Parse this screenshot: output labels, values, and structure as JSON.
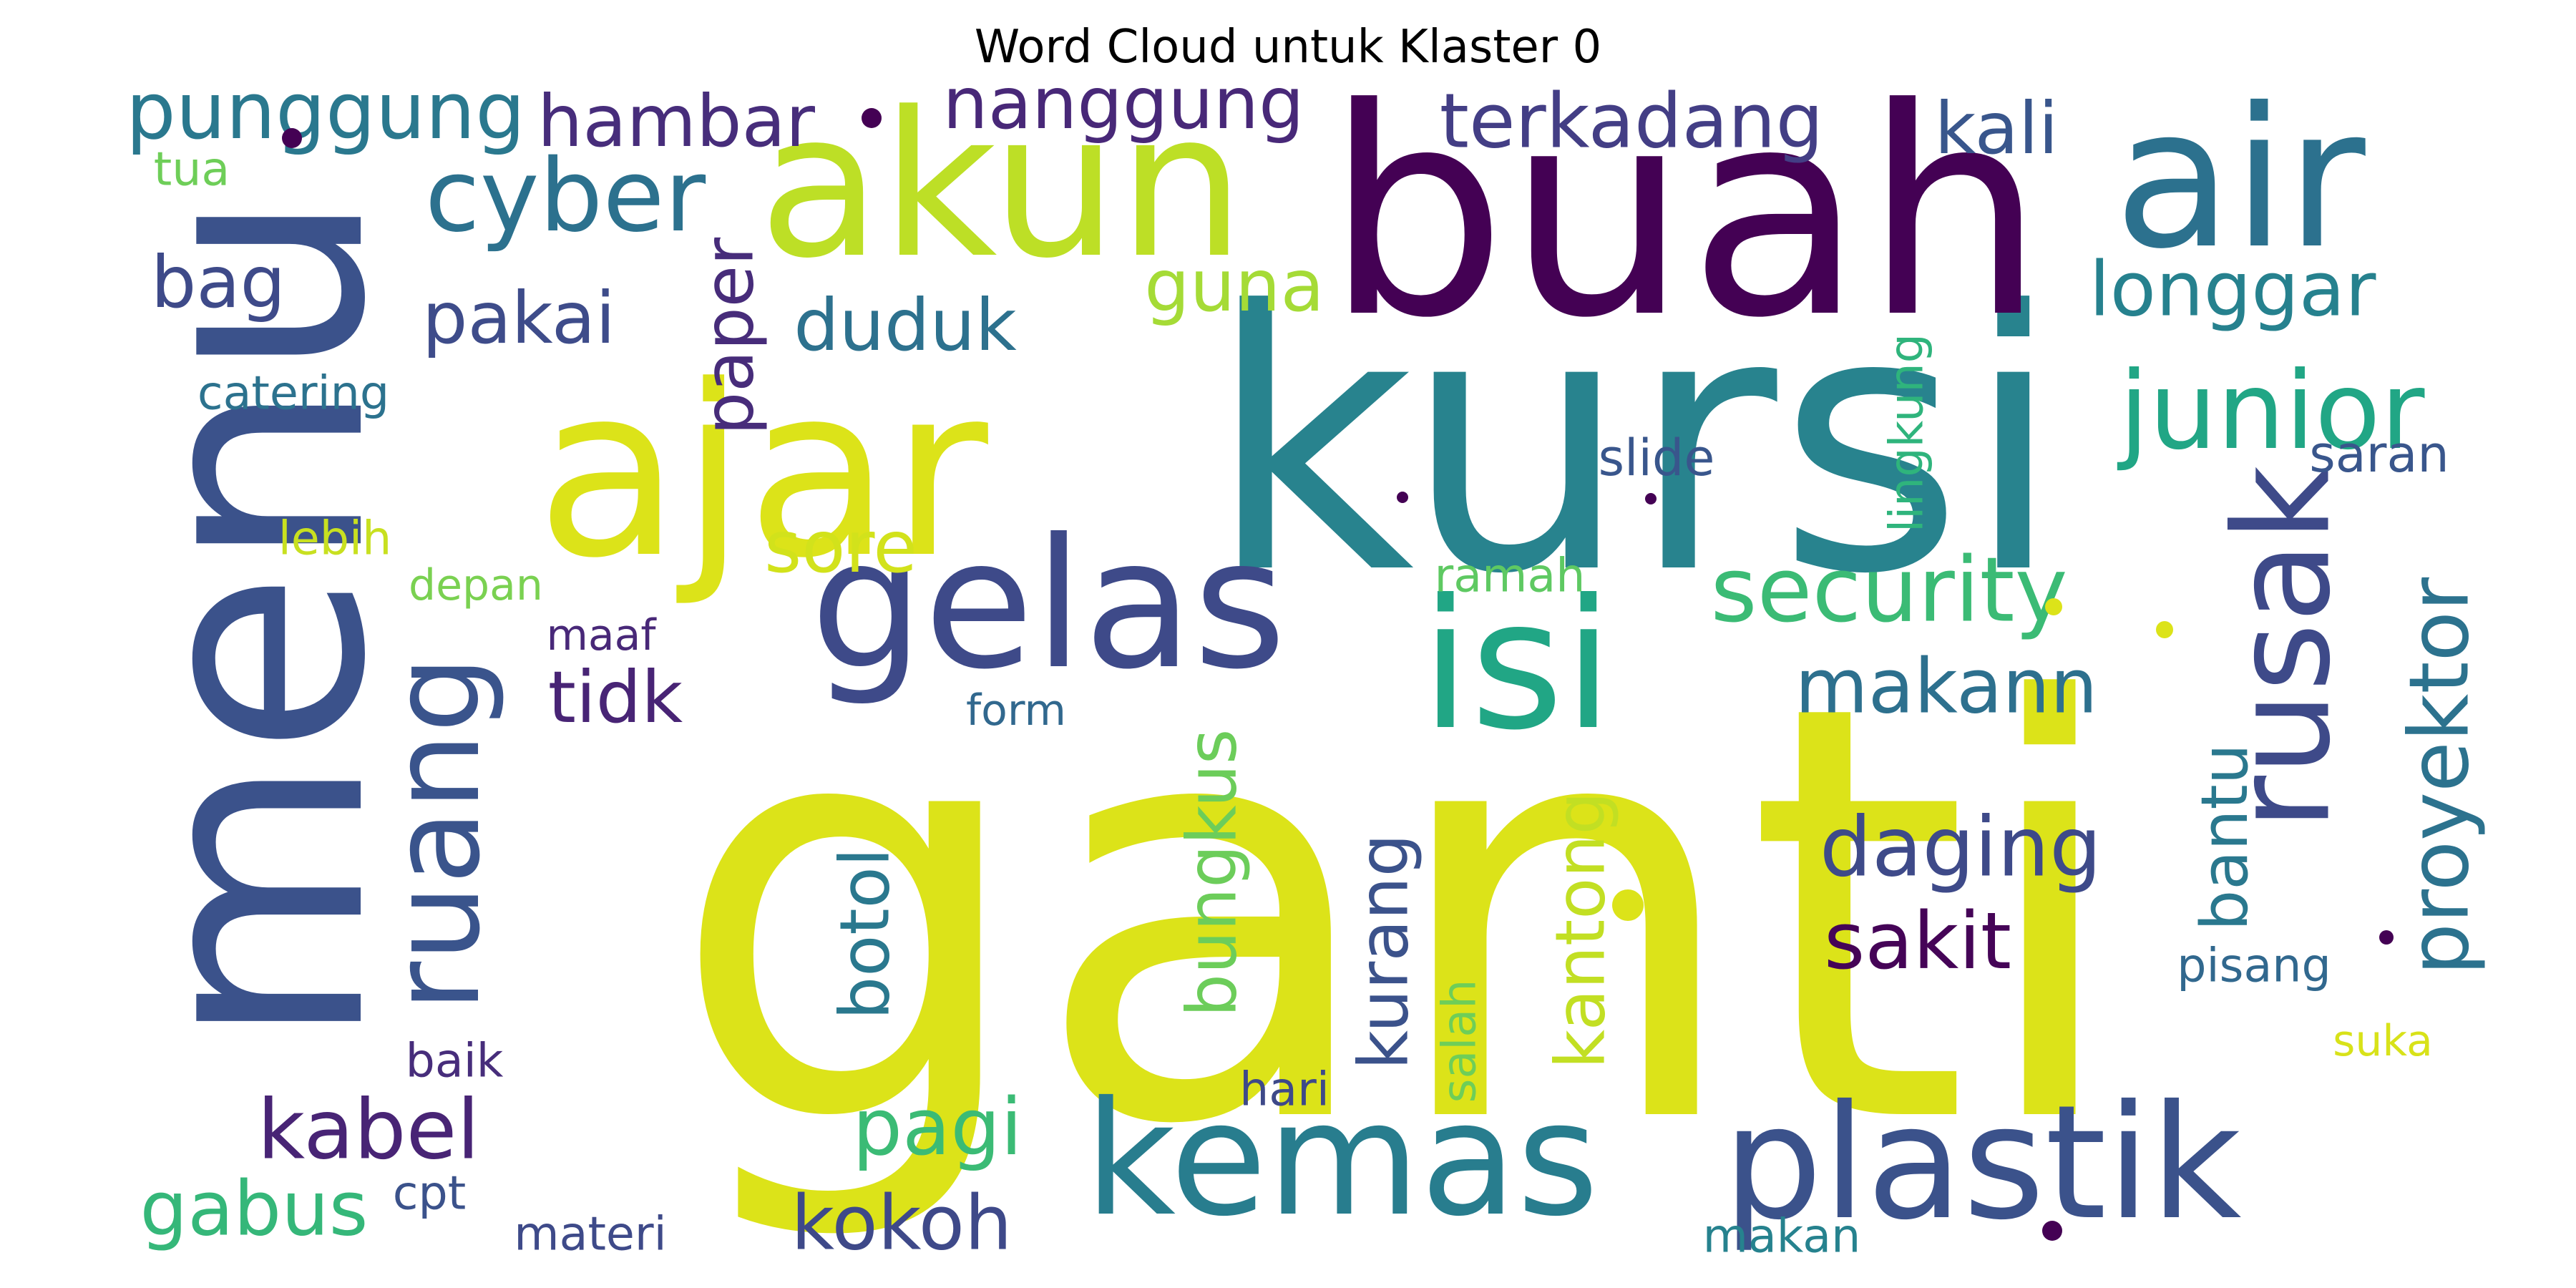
{
  "title": "Word Cloud untuk Klaster 0",
  "words": [
    {
      "text": "ganti",
      "color": "#dce319"
    },
    {
      "text": "kursi",
      "color": "#28838e"
    },
    {
      "text": "buah",
      "color": "#440154"
    },
    {
      "text": "menu",
      "color": "#3b528b"
    },
    {
      "text": "ajar",
      "color": "#dce319"
    },
    {
      "text": "akun",
      "color": "#bddf26"
    },
    {
      "text": "air",
      "color": "#2c718e"
    },
    {
      "text": "gelas",
      "color": "#3e4a89"
    },
    {
      "text": "isi",
      "color": "#21a685"
    },
    {
      "text": "kemas",
      "color": "#287d8e"
    },
    {
      "text": "plastik",
      "color": "#3b528b"
    },
    {
      "text": "rusak",
      "color": "#3e4a89"
    },
    {
      "text": "ruang",
      "color": "#3a548c"
    },
    {
      "text": "junior",
      "color": "#21a685"
    },
    {
      "text": "cyber",
      "color": "#2c718e"
    },
    {
      "text": "security",
      "color": "#3bbb75"
    },
    {
      "text": "proyektor",
      "color": "#2c728e"
    },
    {
      "text": "punggung",
      "color": "#2a788e"
    },
    {
      "text": "terkadang",
      "color": "#433e85"
    },
    {
      "text": "nanggung",
      "color": "#482878"
    },
    {
      "text": "hambar",
      "color": "#472d7b"
    },
    {
      "text": "kali",
      "color": "#39568c"
    },
    {
      "text": "longgar",
      "color": "#26818e"
    },
    {
      "text": "daging",
      "color": "#3e4a89"
    },
    {
      "text": "sakit",
      "color": "#450457"
    },
    {
      "text": "makann",
      "color": "#2d708e"
    },
    {
      "text": "kabel",
      "color": "#482475"
    },
    {
      "text": "kokoh",
      "color": "#3e4989"
    },
    {
      "text": "pagi",
      "color": "#3bbb75"
    },
    {
      "text": "gabus",
      "color": "#35b779"
    },
    {
      "text": "duduk",
      "color": "#2d718e"
    },
    {
      "text": "pakai",
      "color": "#3e4c8a"
    },
    {
      "text": "sore",
      "color": "#d2e21b"
    },
    {
      "text": "tidk",
      "color": "#482475"
    },
    {
      "text": "bag",
      "color": "#3e4a89"
    },
    {
      "text": "guna",
      "color": "#a5db36"
    },
    {
      "text": "paper",
      "color": "#472c7a"
    },
    {
      "text": "botol",
      "color": "#2a788e"
    },
    {
      "text": "bungkus",
      "color": "#6ccd5a"
    },
    {
      "text": "kurang",
      "color": "#3b528b"
    },
    {
      "text": "kantong",
      "color": "#c2df23"
    },
    {
      "text": "bantu",
      "color": "#2a788e"
    },
    {
      "text": "lingkung",
      "color": "#2fb47c"
    },
    {
      "text": "saran",
      "color": "#39568c"
    },
    {
      "text": "slide",
      "color": "#39568c"
    },
    {
      "text": "ramah",
      "color": "#5ec962"
    },
    {
      "text": "pisang",
      "color": "#31688e"
    },
    {
      "text": "suka",
      "color": "#d8e219"
    },
    {
      "text": "salah",
      "color": "#6ece58"
    },
    {
      "text": "catering",
      "color": "#2c728e"
    },
    {
      "text": "tua",
      "color": "#6ece58"
    },
    {
      "text": "lebih",
      "color": "#c8e020"
    },
    {
      "text": "depan",
      "color": "#7ad151"
    },
    {
      "text": "maaf",
      "color": "#482878"
    },
    {
      "text": "form",
      "color": "#31688e"
    },
    {
      "text": "baik",
      "color": "#472d7b"
    },
    {
      "text": "cpt",
      "color": "#3b528b"
    },
    {
      "text": "materi",
      "color": "#3e4a89"
    },
    {
      "text": "hari",
      "color": "#3e4989"
    },
    {
      "text": "makan",
      "color": "#26828e"
    },
    {
      "text": "",
      "color": "#440154"
    },
    {
      "text": "",
      "color": "#dce319"
    }
  ]
}
